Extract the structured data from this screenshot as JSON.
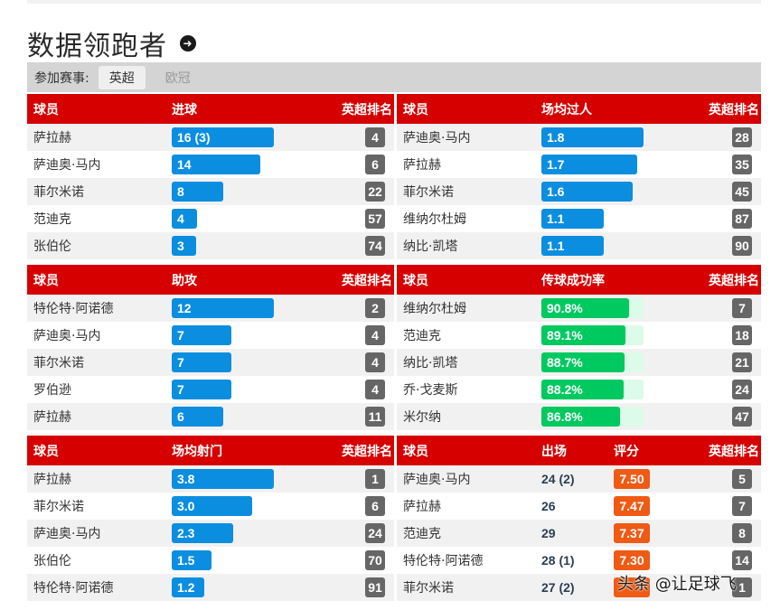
{
  "header": {
    "title": "数据领跑者",
    "arrow_icon": "arrow-right-circle-icon"
  },
  "filter": {
    "label": "参加赛事:",
    "tabs": [
      {
        "label": "英超",
        "active": true
      },
      {
        "label": "欧冠",
        "active": false
      }
    ]
  },
  "colors": {
    "header_red": "#d60000",
    "bar_blue": "#0b8ee0",
    "bar_green": "#00c960",
    "rating_orange": "#ef5a14",
    "rank_gray": "#666666"
  },
  "panels": {
    "goals": {
      "headers": {
        "player": "球员",
        "stat": "进球",
        "rank": "英超排名"
      },
      "rows": [
        {
          "name": "萨拉赫",
          "value": "16 (3)",
          "pct": 100,
          "rank": "4"
        },
        {
          "name": "萨迪奥·马内",
          "value": "14",
          "pct": 87,
          "rank": "6"
        },
        {
          "name": "菲尔米诺",
          "value": "8",
          "pct": 50,
          "rank": "22"
        },
        {
          "name": "范迪克",
          "value": "4",
          "pct": 25,
          "rank": "57"
        },
        {
          "name": "张伯伦",
          "value": "3",
          "pct": 19,
          "rank": "74"
        }
      ]
    },
    "dribbles": {
      "headers": {
        "player": "球员",
        "stat": "场均过人",
        "rank": "英超排名"
      },
      "rows": [
        {
          "name": "萨迪奥·马内",
          "value": "1.8",
          "pct": 100,
          "rank": "28"
        },
        {
          "name": "萨拉赫",
          "value": "1.7",
          "pct": 94,
          "rank": "35"
        },
        {
          "name": "菲尔米诺",
          "value": "1.6",
          "pct": 89,
          "rank": "45"
        },
        {
          "name": "维纳尔杜姆",
          "value": "1.1",
          "pct": 61,
          "rank": "87"
        },
        {
          "name": "纳比·凯塔",
          "value": "1.1",
          "pct": 61,
          "rank": "90"
        }
      ]
    },
    "assists": {
      "headers": {
        "player": "球员",
        "stat": "助攻",
        "rank": "英超排名"
      },
      "rows": [
        {
          "name": "特伦特·阿诺德",
          "value": "12",
          "pct": 100,
          "rank": "2"
        },
        {
          "name": "萨迪奥·马内",
          "value": "7",
          "pct": 58,
          "rank": "4"
        },
        {
          "name": "菲尔米诺",
          "value": "7",
          "pct": 58,
          "rank": "4"
        },
        {
          "name": "罗伯逊",
          "value": "7",
          "pct": 58,
          "rank": "4"
        },
        {
          "name": "萨拉赫",
          "value": "6",
          "pct": 50,
          "rank": "11"
        }
      ]
    },
    "passing": {
      "headers": {
        "player": "球员",
        "stat": "传球成功率",
        "rank": "英超排名"
      },
      "rows": [
        {
          "name": "维纳尔杜姆",
          "value": "90.8%",
          "pct": 90.8,
          "rank": "7"
        },
        {
          "name": "范迪克",
          "value": "89.1%",
          "pct": 89.1,
          "rank": "18"
        },
        {
          "name": "纳比·凯塔",
          "value": "88.7%",
          "pct": 88.7,
          "rank": "21"
        },
        {
          "name": "乔·戈麦斯",
          "value": "88.2%",
          "pct": 88.2,
          "rank": "24"
        },
        {
          "name": "米尔纳",
          "value": "86.8%",
          "pct": 86.8,
          "rank": "47"
        }
      ]
    },
    "shots": {
      "headers": {
        "player": "球员",
        "stat": "场均射门",
        "rank": "英超排名"
      },
      "rows": [
        {
          "name": "萨拉赫",
          "value": "3.8",
          "pct": 100,
          "rank": "1"
        },
        {
          "name": "菲尔米诺",
          "value": "3.0",
          "pct": 79,
          "rank": "6"
        },
        {
          "name": "萨迪奥·马内",
          "value": "2.3",
          "pct": 60,
          "rank": "24"
        },
        {
          "name": "张伯伦",
          "value": "1.5",
          "pct": 39,
          "rank": "70"
        },
        {
          "name": "特伦特·阿诺德",
          "value": "1.2",
          "pct": 32,
          "rank": "91"
        }
      ]
    },
    "ratings": {
      "headers": {
        "player": "球员",
        "apps": "出场",
        "rating": "评分",
        "rank": "英超排名"
      },
      "rows": [
        {
          "name": "萨迪奥·马内",
          "apps": "24 (2)",
          "rating": "7.50",
          "rank": "5"
        },
        {
          "name": "萨拉赫",
          "apps": "26",
          "rating": "7.47",
          "rank": "7"
        },
        {
          "name": "范迪克",
          "apps": "29",
          "rating": "7.37",
          "rank": "8"
        },
        {
          "name": "特伦特·阿诺德",
          "apps": "28 (1)",
          "rating": "7.30",
          "rank": "14"
        },
        {
          "name": "菲尔米诺",
          "apps": "27 (2)",
          "rating": "",
          "rank": "1"
        }
      ]
    }
  },
  "watermark": "头条 @让足球飞"
}
